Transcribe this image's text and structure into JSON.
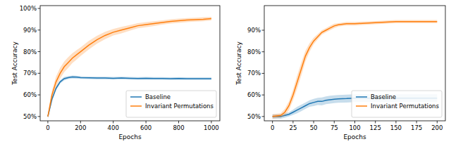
{
  "chart_data": [
    {
      "type": "line",
      "x_label": "Epochs",
      "y_label": "Test Accuracy",
      "x": [
        0,
        25,
        50,
        75,
        100,
        125,
        150,
        175,
        200,
        250,
        300,
        350,
        400,
        450,
        500,
        550,
        600,
        650,
        700,
        750,
        800,
        850,
        900,
        950,
        1000
      ],
      "xlim": [
        -47,
        1052
      ],
      "xticks": [
        0,
        200,
        400,
        600,
        800,
        1000
      ],
      "ylim": [
        48,
        101.3
      ],
      "yticks": [
        {
          "value": 50,
          "label": "50%"
        },
        {
          "value": 60,
          "label": "60%"
        },
        {
          "value": 70,
          "label": "70%"
        },
        {
          "value": 80,
          "label": "80%"
        },
        {
          "value": 90,
          "label": "90%"
        },
        {
          "value": 100,
          "label": "100%"
        }
      ],
      "legend": "lower right",
      "series": [
        {
          "name": "Baseline",
          "color": "#1f77b4",
          "values": [
            50,
            58,
            63,
            66,
            67.5,
            68,
            68.3,
            68.2,
            68,
            67.9,
            67.8,
            67.8,
            67.7,
            67.8,
            67.7,
            67.6,
            67.7,
            67.6,
            67.6,
            67.5,
            67.6,
            67.5,
            67.5,
            67.5,
            67.5
          ],
          "error": [
            1,
            1,
            0.9,
            0.8,
            0.8,
            0.7,
            0.7,
            0.7,
            0.6,
            0.6,
            0.6,
            0.6,
            0.6,
            0.6,
            0.6,
            0.6,
            0.6,
            0.6,
            0.6,
            0.6,
            0.6,
            0.6,
            0.6,
            0.6,
            0.6
          ]
        },
        {
          "name": "Invariant Permutations",
          "color": "#ff7f0e",
          "values": [
            50,
            60,
            66,
            70,
            73,
            75,
            77,
            78.5,
            80,
            83,
            85.5,
            87.5,
            89,
            90,
            91,
            92,
            92.5,
            93,
            93.5,
            94,
            94.3,
            94.6,
            94.8,
            95,
            95.3
          ],
          "error": [
            1,
            2,
            2.5,
            2.5,
            2.5,
            2.5,
            2.3,
            2.2,
            2,
            2,
            1.8,
            1.7,
            1.5,
            1.5,
            1.3,
            1.2,
            1.2,
            1.1,
            1,
            1,
            1,
            0.9,
            0.9,
            0.9,
            0.8
          ]
        }
      ]
    },
    {
      "type": "line",
      "x_label": "Epochs",
      "y_label": "Test Accuracy",
      "x": [
        0,
        10,
        15,
        20,
        25,
        30,
        35,
        40,
        45,
        50,
        55,
        60,
        65,
        70,
        75,
        80,
        90,
        100,
        125,
        150,
        175,
        200
      ],
      "xlim": [
        -10,
        210
      ],
      "xticks": [
        0,
        25,
        50,
        75,
        100,
        125,
        150,
        175,
        200
      ],
      "ylim": [
        48,
        101.4
      ],
      "yticks": [
        {
          "value": 50,
          "label": "50%"
        },
        {
          "value": 60,
          "label": "60%"
        },
        {
          "value": 70,
          "label": "70%"
        },
        {
          "value": 80,
          "label": "80%"
        },
        {
          "value": 90,
          "label": "90%"
        }
      ],
      "legend": "lower right",
      "series": [
        {
          "name": "Baseline",
          "color": "#1f77b4",
          "values": [
            50,
            50,
            50.5,
            51,
            52,
            53,
            54,
            55,
            56,
            56.5,
            57,
            57,
            57.5,
            57.8,
            58,
            58.2,
            58.3,
            58.5,
            58.5,
            58.5,
            58.5,
            58.5
          ],
          "error": [
            1,
            1,
            1,
            1,
            1.2,
            1.5,
            1.5,
            1.5,
            1.5,
            1.7,
            1.7,
            1.8,
            1.8,
            1.8,
            1.8,
            1.8,
            1.8,
            1.8,
            1.8,
            1.8,
            1.8,
            1.8
          ]
        },
        {
          "name": "Invariant Permutations",
          "color": "#ff7f0e",
          "values": [
            50,
            50.5,
            52,
            55,
            60,
            66,
            72,
            78,
            82,
            85,
            87,
            89,
            90,
            91,
            92,
            92.5,
            93,
            93,
            93.5,
            94,
            94,
            94
          ],
          "error": [
            1,
            1,
            1.5,
            2,
            2.5,
            3,
            3,
            2.5,
            2,
            1.5,
            1.2,
            1,
            1,
            1,
            1,
            0.8,
            0.8,
            0.8,
            0.7,
            0.7,
            0.7,
            0.7
          ]
        }
      ]
    }
  ]
}
